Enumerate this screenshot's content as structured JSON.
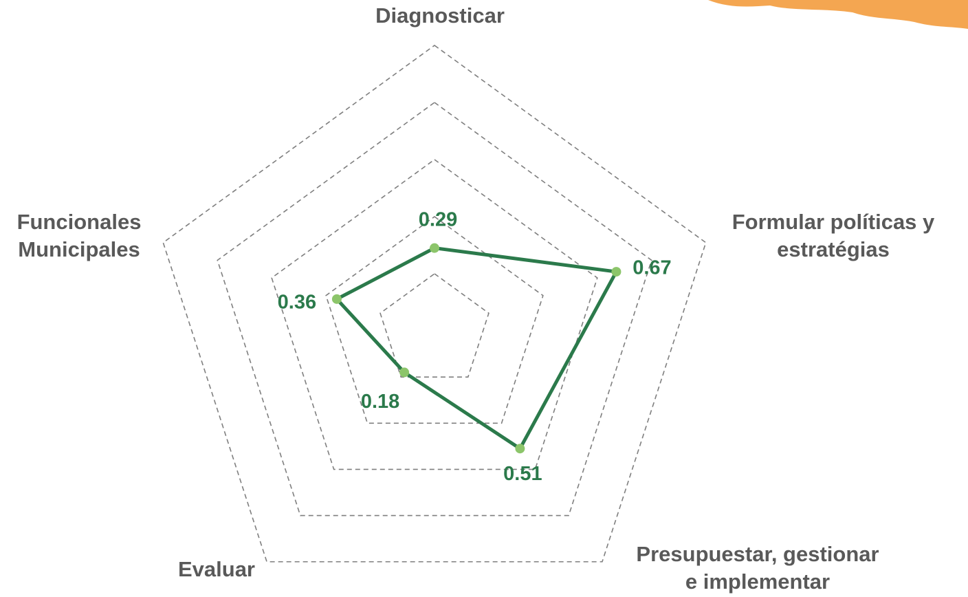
{
  "chart_data": {
    "type": "radar",
    "categories": [
      "Diagnosticar",
      [
        "Formular políticas y",
        "estratégias"
      ],
      [
        "Presupuestar, gestionar",
        "e implementar"
      ],
      "Evaluar",
      [
        "Funcionales",
        "Municipales"
      ]
    ],
    "series": [
      {
        "color": "#2b7a4b",
        "values": [
          0.29,
          0.67,
          0.51,
          0.18,
          0.36
        ]
      }
    ],
    "marker_color": "#8cc56a",
    "rlim": [
      0,
      1
    ],
    "rticks": [
      0.2,
      0.4,
      0.6,
      0.8,
      1.0
    ],
    "grid": true
  }
}
